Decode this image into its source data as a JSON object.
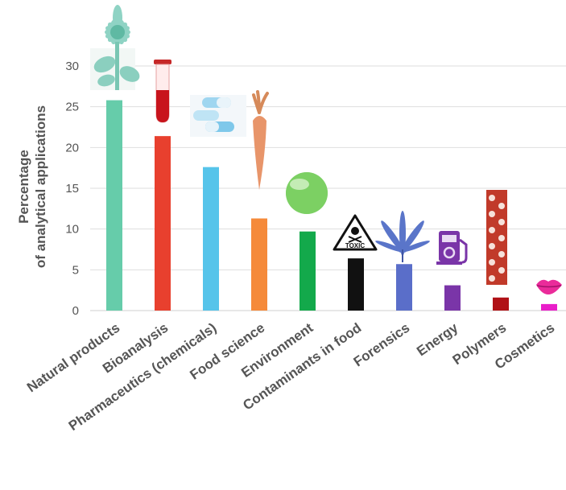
{
  "chart_data": {
    "type": "bar",
    "title": "",
    "ylabel_line1": "Percentage",
    "ylabel_line2": "of analytical applications",
    "xlabel": "",
    "ylim": [
      0,
      30
    ],
    "yticks": [
      0,
      5,
      10,
      15,
      20,
      25,
      30
    ],
    "grid": true,
    "categories": [
      "Natural products",
      "Bioanalysis",
      "Pharmaceutics (chemicals)",
      "Food science",
      "Environment",
      "Contaminants in food",
      "Forensics",
      "Energy",
      "Polymers",
      "Cosmetics"
    ],
    "values": [
      25.8,
      21.4,
      17.6,
      11.3,
      9.7,
      6.4,
      5.7,
      3.1,
      1.6,
      0.8
    ],
    "colors": [
      "#66ccaa",
      "#e8402e",
      "#56c4ea",
      "#f58a3a",
      "#13a94b",
      "#111111",
      "#5a6ec9",
      "#7a35a8",
      "#b01116",
      "#e91ec9"
    ],
    "icons": [
      "sunflower-icon",
      "test-tube-icon",
      "pills-icon",
      "carrot-icon",
      "green-globe-icon",
      "toxic-warning-icon",
      "cannabis-leaf-icon",
      "fuel-pump-icon",
      "polymer-chain-icon",
      "lips-icon"
    ],
    "icon_text": {
      "toxic": "TOXIC"
    }
  }
}
